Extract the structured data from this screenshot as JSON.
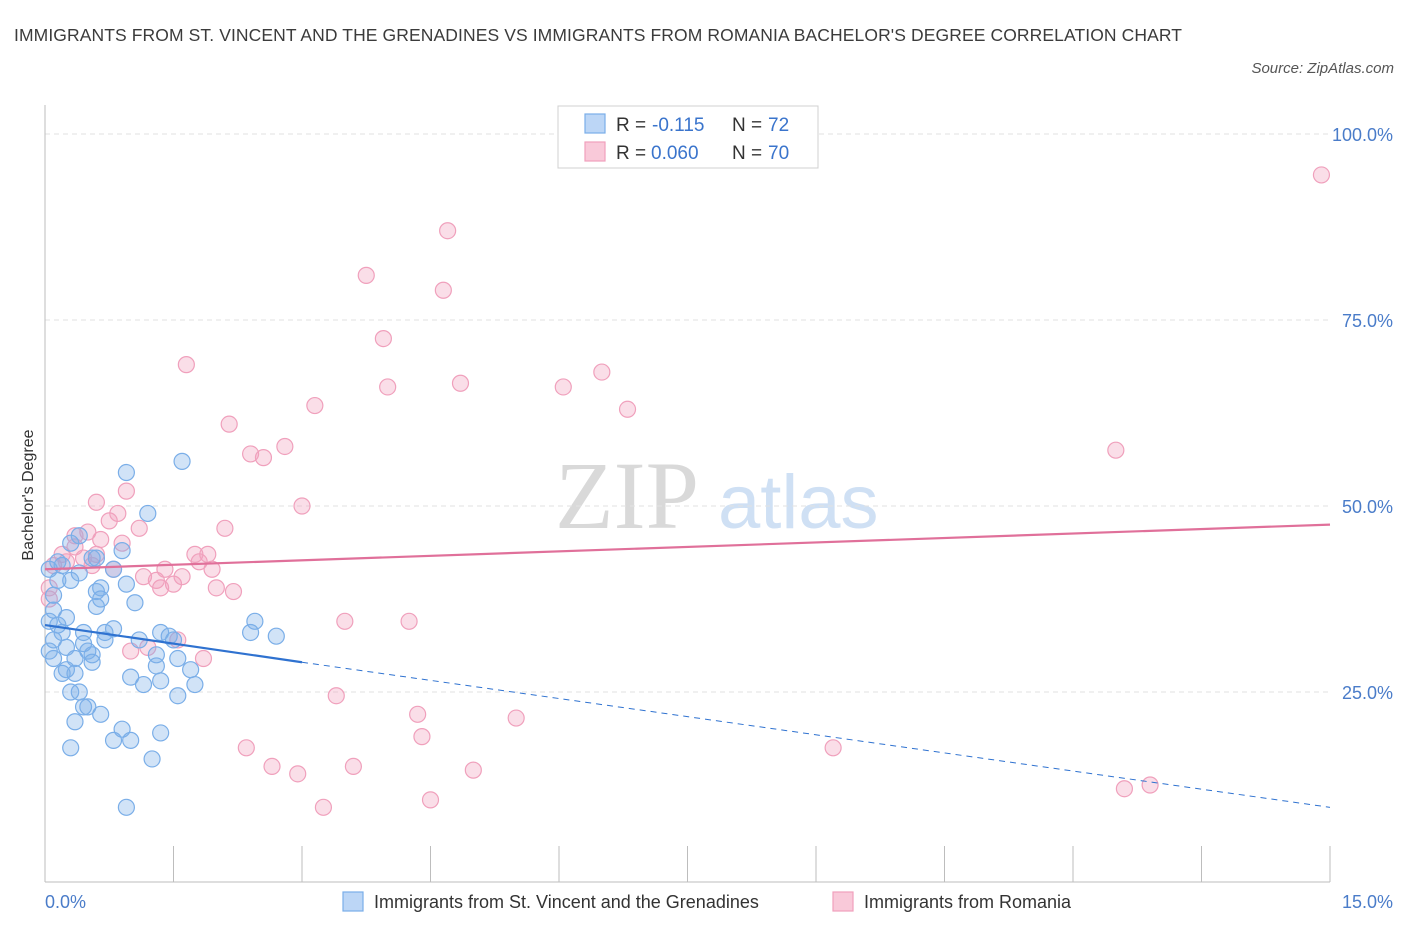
{
  "title": "IMMIGRANTS FROM ST. VINCENT AND THE GRENADINES VS IMMIGRANTS FROM ROMANIA BACHELOR'S DEGREE CORRELATION CHART",
  "source": "Source: ZipAtlas.com",
  "colors": {
    "blue": "#7aaee8",
    "blue_line": "#2f72d0",
    "pink": "#f0a0bc",
    "pink_line": "#e0709a",
    "tick_label": "#4a7cc9",
    "grid": "#e2e2e2"
  },
  "legend_stats": [
    {
      "r_label": "R =",
      "r_value": "-0.115",
      "n_label": "N =",
      "n_value": "72"
    },
    {
      "r_label": "R =",
      "r_value": "0.060",
      "n_label": "N =",
      "n_value": "70"
    }
  ],
  "chart_data": {
    "type": "scatter",
    "title": "IMMIGRANTS FROM ST. VINCENT AND THE GRENADINES VS IMMIGRANTS FROM ROMANIA BACHELOR'S DEGREE CORRELATION CHART",
    "xlabel": "",
    "ylabel": "Bachelor's Degree",
    "xlim": [
      0,
      15
    ],
    "ylim": [
      0,
      100
    ],
    "x_tick_labels": [
      "0.0%",
      "15.0%"
    ],
    "y_ticks": [
      25,
      50,
      75,
      100
    ],
    "y_tick_labels": [
      "25.0%",
      "50.0%",
      "75.0%",
      "100.0%"
    ],
    "grid": true,
    "legend_position": "bottom",
    "series": [
      {
        "name": "Immigrants from St. Vincent and the Grenadines",
        "color": "#7aaee8",
        "trend": {
          "x": [
            0,
            3.0
          ],
          "y": [
            34,
            29
          ],
          "dashed_to": [
            15,
            9.5
          ]
        },
        "points": [
          [
            0.05,
            34.5
          ],
          [
            0.05,
            30.5
          ],
          [
            0.1,
            36
          ],
          [
            0.1,
            32
          ],
          [
            0.15,
            40
          ],
          [
            0.15,
            34
          ],
          [
            0.2,
            42
          ],
          [
            0.2,
            27.5
          ],
          [
            0.25,
            35
          ],
          [
            0.25,
            31
          ],
          [
            0.3,
            40
          ],
          [
            0.3,
            25
          ],
          [
            0.3,
            17.5
          ],
          [
            0.35,
            29.5
          ],
          [
            0.35,
            27.5
          ],
          [
            0.35,
            21
          ],
          [
            0.4,
            41
          ],
          [
            0.4,
            25
          ],
          [
            0.45,
            33
          ],
          [
            0.45,
            23
          ],
          [
            0.5,
            30.5
          ],
          [
            0.5,
            23
          ],
          [
            0.55,
            43
          ],
          [
            0.55,
            30
          ],
          [
            0.6,
            38.5
          ],
          [
            0.6,
            36.5
          ],
          [
            0.65,
            39
          ],
          [
            0.65,
            37.5
          ],
          [
            0.65,
            22
          ],
          [
            0.7,
            33
          ],
          [
            0.7,
            32
          ],
          [
            0.8,
            41.5
          ],
          [
            0.8,
            18.5
          ],
          [
            0.9,
            44
          ],
          [
            0.9,
            20
          ],
          [
            0.95,
            54.5
          ],
          [
            0.95,
            39.5
          ],
          [
            1.0,
            18.5
          ],
          [
            1.05,
            37
          ],
          [
            1.1,
            32
          ],
          [
            1.15,
            26
          ],
          [
            1.2,
            49
          ],
          [
            1.25,
            16
          ],
          [
            1.3,
            28.5
          ],
          [
            1.3,
            30
          ],
          [
            1.35,
            26.5
          ],
          [
            1.35,
            33
          ],
          [
            1.35,
            19.5
          ],
          [
            1.5,
            32
          ],
          [
            1.55,
            29.5
          ],
          [
            1.55,
            24.5
          ],
          [
            1.6,
            56
          ],
          [
            1.7,
            28
          ],
          [
            1.75,
            26
          ],
          [
            2.4,
            33
          ],
          [
            2.45,
            34.5
          ],
          [
            2.7,
            32.5
          ],
          [
            0.95,
            9.5
          ],
          [
            0.1,
            38
          ],
          [
            0.2,
            33
          ],
          [
            0.25,
            28
          ],
          [
            0.4,
            46
          ],
          [
            0.6,
            43
          ],
          [
            0.15,
            42.5
          ],
          [
            0.05,
            41.5
          ],
          [
            0.1,
            29.5
          ],
          [
            0.45,
            31.5
          ],
          [
            0.55,
            29
          ],
          [
            0.8,
            33.5
          ],
          [
            1.0,
            27
          ],
          [
            1.45,
            32.5
          ],
          [
            0.3,
            45
          ]
        ]
      },
      {
        "name": "Immigrants from Romania",
        "color": "#f0a0bc",
        "trend": {
          "x": [
            0,
            15
          ],
          "y": [
            41.5,
            47.5
          ]
        },
        "points": [
          [
            0.05,
            39
          ],
          [
            0.05,
            37.5
          ],
          [
            0.1,
            42
          ],
          [
            0.2,
            43.5
          ],
          [
            0.25,
            42.5
          ],
          [
            0.35,
            46
          ],
          [
            0.35,
            44.5
          ],
          [
            0.45,
            43
          ],
          [
            0.5,
            46.5
          ],
          [
            0.55,
            42
          ],
          [
            0.6,
            43.5
          ],
          [
            0.6,
            50.5
          ],
          [
            0.65,
            45.5
          ],
          [
            0.75,
            48
          ],
          [
            0.8,
            41.5
          ],
          [
            0.85,
            49
          ],
          [
            0.9,
            45
          ],
          [
            0.95,
            52
          ],
          [
            1.0,
            30.5
          ],
          [
            1.1,
            47
          ],
          [
            1.15,
            40.5
          ],
          [
            1.2,
            31
          ],
          [
            1.3,
            40
          ],
          [
            1.35,
            39
          ],
          [
            1.4,
            41.5
          ],
          [
            1.5,
            39.5
          ],
          [
            1.55,
            32
          ],
          [
            1.6,
            40.5
          ],
          [
            1.65,
            69
          ],
          [
            1.75,
            43.5
          ],
          [
            1.8,
            42.5
          ],
          [
            1.85,
            29.5
          ],
          [
            1.9,
            43.5
          ],
          [
            1.95,
            41.5
          ],
          [
            2.0,
            39
          ],
          [
            2.1,
            47
          ],
          [
            2.15,
            61
          ],
          [
            2.2,
            38.5
          ],
          [
            2.35,
            17.5
          ],
          [
            2.4,
            57
          ],
          [
            2.55,
            56.5
          ],
          [
            2.65,
            15
          ],
          [
            2.8,
            58
          ],
          [
            2.95,
            14
          ],
          [
            3.0,
            50
          ],
          [
            3.15,
            63.5
          ],
          [
            3.25,
            9.5
          ],
          [
            3.4,
            24.5
          ],
          [
            3.5,
            34.5
          ],
          [
            3.6,
            15
          ],
          [
            3.75,
            81
          ],
          [
            3.95,
            72.5
          ],
          [
            4.0,
            66
          ],
          [
            4.25,
            34.5
          ],
          [
            4.35,
            22
          ],
          [
            4.4,
            19
          ],
          [
            4.5,
            10.5
          ],
          [
            4.65,
            79
          ],
          [
            4.7,
            87
          ],
          [
            4.85,
            66.5
          ],
          [
            5.0,
            14.5
          ],
          [
            5.5,
            21.5
          ],
          [
            6.05,
            66
          ],
          [
            6.5,
            68
          ],
          [
            6.8,
            63
          ],
          [
            9.2,
            17.5
          ],
          [
            12.5,
            57.5
          ],
          [
            12.6,
            12
          ],
          [
            12.9,
            12.5
          ],
          [
            14.9,
            94.5
          ]
        ]
      }
    ]
  }
}
